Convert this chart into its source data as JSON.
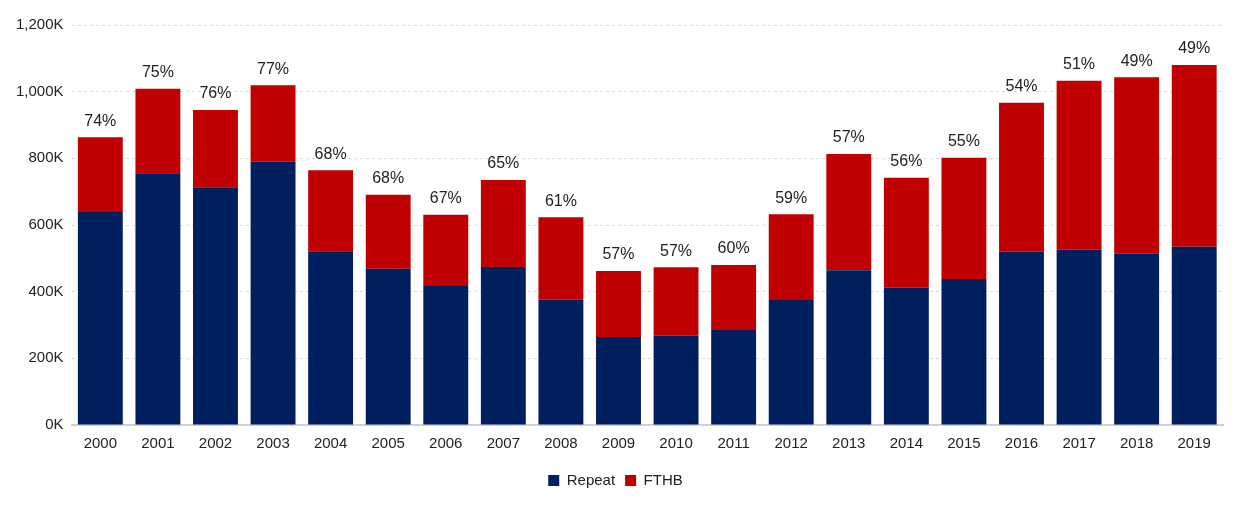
{
  "chart_data": {
    "type": "bar",
    "stacked": true,
    "categories": [
      "2000",
      "2001",
      "2002",
      "2003",
      "2004",
      "2005",
      "2006",
      "2007",
      "2008",
      "2009",
      "2010",
      "2011",
      "2012",
      "2013",
      "2014",
      "2015",
      "2016",
      "2017",
      "2018",
      "2019"
    ],
    "series": [
      {
        "name": "Repeat",
        "color": "#001f5f",
        "values": [
          639,
          755,
          713,
          790,
          521,
          469,
          417,
          474,
          376,
          264,
          268,
          285,
          375,
          464,
          412,
          438,
          520,
          526,
          514,
          535
        ]
      },
      {
        "name": "FTHB",
        "color": "#c00000",
        "values": [
          224,
          254,
          232,
          229,
          243,
          222,
          214,
          261,
          247,
          198,
          205,
          195,
          257,
          349,
          330,
          364,
          447,
          507,
          529,
          545
        ]
      }
    ],
    "ylim": [
      0,
      1200
    ],
    "yticks": [
      {
        "value": 0,
        "label": "0K"
      },
      {
        "value": 200,
        "label": "200K"
      },
      {
        "value": 400,
        "label": "400K"
      },
      {
        "value": 600,
        "label": "600K"
      },
      {
        "value": 800,
        "label": "800K"
      },
      {
        "value": 1000,
        "label": "1,000K"
      },
      {
        "value": 1200,
        "label": "1,200K"
      }
    ],
    "grid": "y",
    "legend": "bottom",
    "annotations": [
      {
        "text": "74%",
        "x": "2000",
        "y": 863
      },
      {
        "text": "75%",
        "x": "2001",
        "y": 1009
      },
      {
        "text": "76%",
        "x": "2002",
        "y": 945
      },
      {
        "text": "77%",
        "x": "2003",
        "y": 1019
      },
      {
        "text": "68%",
        "x": "2004",
        "y": 764
      },
      {
        "text": "68%",
        "x": "2005",
        "y": 691
      },
      {
        "text": "67%",
        "x": "2006",
        "y": 631
      },
      {
        "text": "65%",
        "x": "2007",
        "y": 735
      },
      {
        "text": "61%",
        "x": "2008",
        "y": 623
      },
      {
        "text": "57%",
        "x": "2009",
        "y": 462
      },
      {
        "text": "57%",
        "x": "2010",
        "y": 473
      },
      {
        "text": "60%",
        "x": "2011",
        "y": 480
      },
      {
        "text": "59%",
        "x": "2012",
        "y": 632
      },
      {
        "text": "57%",
        "x": "2013",
        "y": 813
      },
      {
        "text": "56%",
        "x": "2014",
        "y": 742
      },
      {
        "text": "55%",
        "x": "2015",
        "y": 802
      },
      {
        "text": "54%",
        "x": "2016",
        "y": 967
      },
      {
        "text": "51%",
        "x": "2017",
        "y": 1033
      },
      {
        "text": "49%",
        "x": "2018",
        "y": 1043
      },
      {
        "text": "49%",
        "x": "2019",
        "y": 1080
      }
    ]
  }
}
